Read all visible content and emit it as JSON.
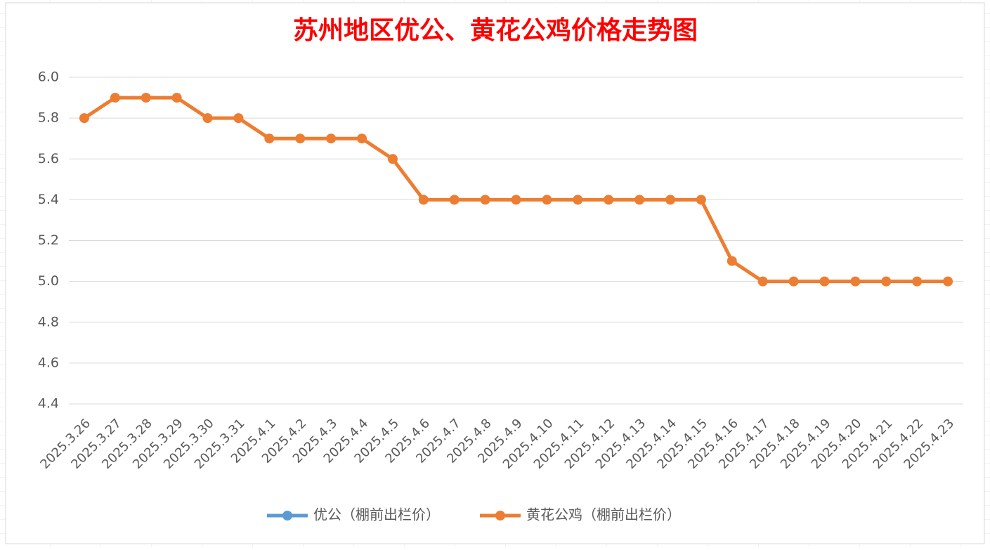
{
  "chart_data": {
    "type": "line",
    "title": "苏州地区优公、黄花公鸡价格走势图",
    "categories": [
      "2025.3.26",
      "2025.3.27",
      "2025.3.28",
      "2025.3.29",
      "2025.3.30",
      "2025.3.31",
      "2025.4.1",
      "2025.4.2",
      "2025.4.3",
      "2025.4.4",
      "2025.4.5",
      "2025.4.6",
      "2025.4.7",
      "2025.4.8",
      "2025.4.9",
      "2025.4.10",
      "2025.4.11",
      "2025.4.12",
      "2025.4.13",
      "2025.4.14",
      "2025.4.15",
      "2025.4.16",
      "2025.4.17",
      "2025.4.18",
      "2025.4.19",
      "2025.4.20",
      "2025.4.21",
      "2025.4.22",
      "2025.4.23"
    ],
    "series": [
      {
        "name": "优公（棚前出栏价）",
        "color": "#5b9bd5",
        "values": [
          null,
          null,
          null,
          null,
          null,
          null,
          null,
          null,
          null,
          null,
          null,
          null,
          null,
          null,
          null,
          null,
          null,
          null,
          null,
          null,
          null,
          null,
          null,
          null,
          null,
          null,
          null,
          null,
          null
        ]
      },
      {
        "name": "黄花公鸡（棚前出栏价）",
        "color": "#ed7d31",
        "values": [
          5.8,
          5.9,
          5.9,
          5.9,
          5.8,
          5.8,
          5.7,
          5.7,
          5.7,
          5.7,
          5.6,
          5.4,
          5.4,
          5.4,
          5.4,
          5.4,
          5.4,
          5.4,
          5.4,
          5.4,
          5.4,
          5.1,
          5.0,
          5.0,
          5.0,
          5.0,
          5.0,
          5.0,
          5.0
        ]
      }
    ],
    "ylim": [
      4.4,
      6.0
    ],
    "yticks": [
      4.4,
      4.6,
      4.8,
      {
        "value": 5,
        "label": "5.0"
      },
      5.2,
      5.4,
      5.6,
      5.8,
      {
        "value": 6,
        "label": "6.0"
      }
    ],
    "grid": true,
    "legend": "bottom"
  }
}
